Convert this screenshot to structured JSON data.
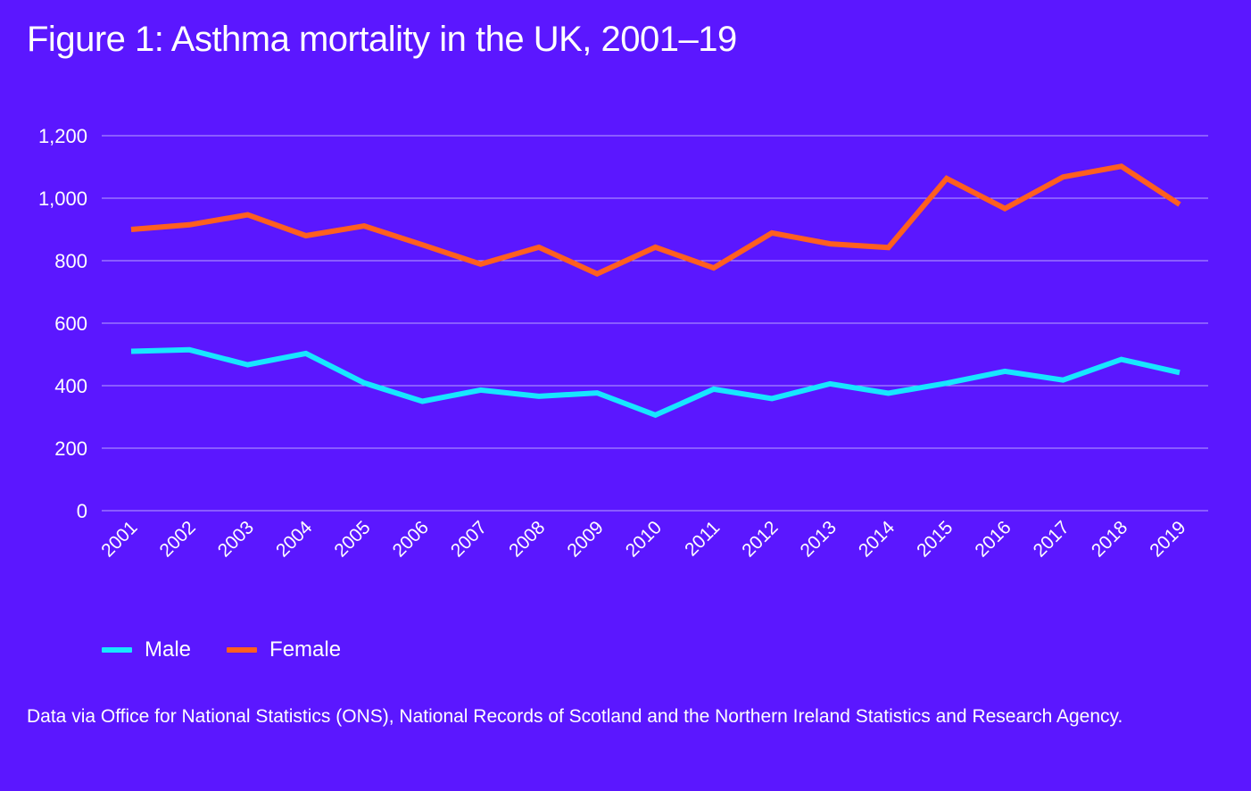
{
  "colors": {
    "background": "#5b17ff",
    "male": "#17e6ff",
    "female": "#ff5f1f",
    "grid": "#c9b8ff"
  },
  "chart_data": {
    "type": "line",
    "title": "Figure 1: Asthma mortality in the UK, 2001–19",
    "xlabel": "",
    "ylabel": "",
    "ylim": [
      0,
      1200
    ],
    "yticks": [
      0,
      200,
      400,
      600,
      800,
      1000,
      1200
    ],
    "ytick_labels": [
      "0",
      "200",
      "400",
      "600",
      "800",
      "1,000",
      "1,200"
    ],
    "grid": true,
    "categories": [
      "2001",
      "2002",
      "2003",
      "2004",
      "2005",
      "2006",
      "2007",
      "2008",
      "2009",
      "2010",
      "2011",
      "2012",
      "2013",
      "2014",
      "2015",
      "2016",
      "2017",
      "2018",
      "2019"
    ],
    "series": [
      {
        "name": "Male",
        "color": "#17e6ff",
        "values": [
          510,
          515,
          467,
          503,
          409,
          350,
          386,
          366,
          377,
          306,
          389,
          359,
          406,
          376,
          408,
          446,
          418,
          484,
          442
        ]
      },
      {
        "name": "Female",
        "color": "#ff5f1f",
        "values": [
          900,
          915,
          947,
          880,
          911,
          851,
          789,
          843,
          758,
          843,
          777,
          889,
          854,
          842,
          1063,
          967,
          1068,
          1102,
          980
        ]
      }
    ],
    "legend_position": "bottom-left"
  },
  "source_note": "Data via Office for National Statistics (ONS), National Records of Scotland and the Northern Ireland Statistics and Research Agency."
}
